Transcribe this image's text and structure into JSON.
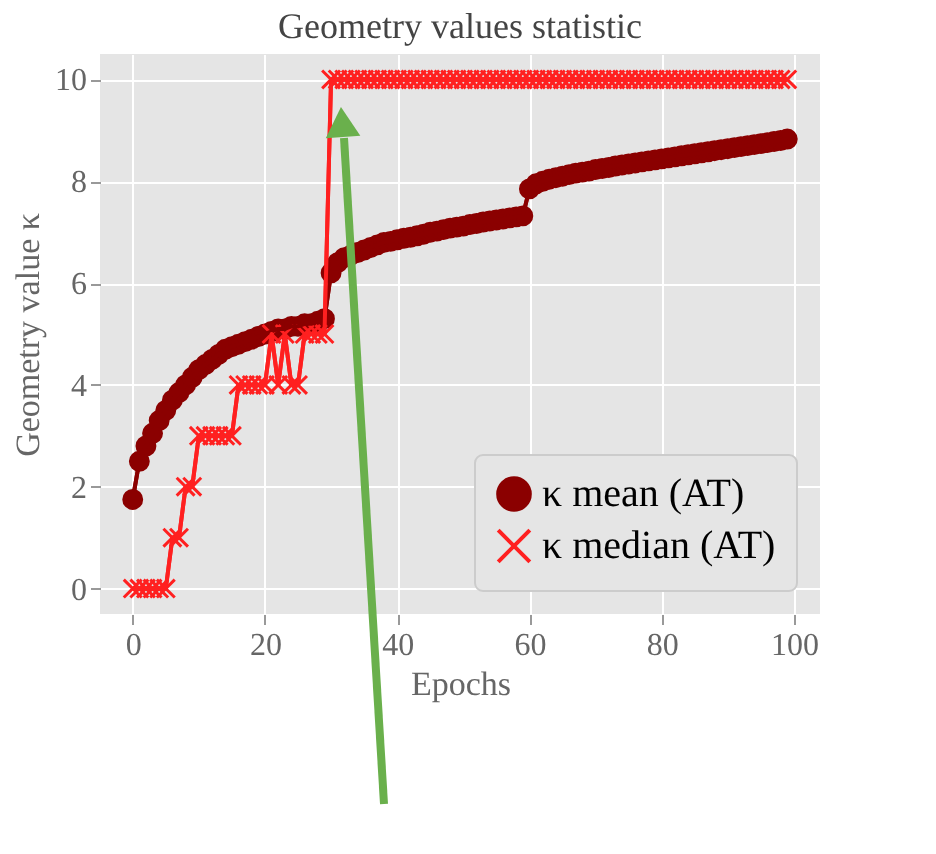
{
  "chart_data": {
    "type": "line",
    "title": "Geometry values statistic",
    "xlabel": "Epochs",
    "ylabel": "Geometry value κ",
    "x": [
      0,
      1,
      2,
      3,
      4,
      5,
      6,
      7,
      8,
      9,
      10,
      11,
      12,
      13,
      14,
      15,
      16,
      17,
      18,
      19,
      20,
      21,
      22,
      23,
      24,
      25,
      26,
      27,
      28,
      29,
      30,
      31,
      32,
      33,
      34,
      35,
      36,
      37,
      38,
      39,
      40,
      41,
      42,
      43,
      44,
      45,
      46,
      47,
      48,
      49,
      50,
      51,
      52,
      53,
      54,
      55,
      56,
      57,
      58,
      59,
      60,
      61,
      62,
      63,
      64,
      65,
      66,
      67,
      68,
      69,
      70,
      71,
      72,
      73,
      74,
      75,
      76,
      77,
      78,
      79,
      80,
      81,
      82,
      83,
      84,
      85,
      86,
      87,
      88,
      89,
      90,
      91,
      92,
      93,
      94,
      95,
      96,
      97,
      98,
      99
    ],
    "series": [
      {
        "name": "κ mean (AT)",
        "color": "#8b0000",
        "marker": "circle",
        "values": [
          1.75,
          2.5,
          2.8,
          3.05,
          3.3,
          3.5,
          3.7,
          3.85,
          4.0,
          4.15,
          4.3,
          4.4,
          4.5,
          4.6,
          4.7,
          4.75,
          4.8,
          4.85,
          4.9,
          4.95,
          5.0,
          5.05,
          5.1,
          5.1,
          5.15,
          5.15,
          5.2,
          5.2,
          5.25,
          5.3,
          6.2,
          6.4,
          6.5,
          6.55,
          6.6,
          6.65,
          6.7,
          6.75,
          6.8,
          6.82,
          6.85,
          6.88,
          6.9,
          6.93,
          6.96,
          7.0,
          7.02,
          7.05,
          7.08,
          7.1,
          7.12,
          7.15,
          7.17,
          7.2,
          7.22,
          7.24,
          7.26,
          7.28,
          7.3,
          7.32,
          7.85,
          7.95,
          8.0,
          8.04,
          8.07,
          8.1,
          8.13,
          8.16,
          8.18,
          8.2,
          8.23,
          8.25,
          8.27,
          8.3,
          8.32,
          8.34,
          8.36,
          8.38,
          8.4,
          8.42,
          8.44,
          8.46,
          8.48,
          8.5,
          8.52,
          8.54,
          8.56,
          8.58,
          8.6,
          8.62,
          8.64,
          8.66,
          8.68,
          8.7,
          8.72,
          8.74,
          8.76,
          8.78,
          8.8,
          8.83
        ]
      },
      {
        "name": "κ median (AT)",
        "color": "#ff2020",
        "marker": "cross",
        "values": [
          0,
          0,
          0,
          0,
          0,
          0,
          1,
          1,
          2,
          2,
          3,
          3,
          3,
          3,
          3,
          3,
          4,
          4,
          4,
          4,
          4,
          5,
          4,
          5,
          4,
          4,
          5,
          5,
          5,
          5,
          10,
          10,
          10,
          10,
          10,
          10,
          10,
          10,
          10,
          10,
          10,
          10,
          10,
          10,
          10,
          10,
          10,
          10,
          10,
          10,
          10,
          10,
          10,
          10,
          10,
          10,
          10,
          10,
          10,
          10,
          10,
          10,
          10,
          10,
          10,
          10,
          10,
          10,
          10,
          10,
          10,
          10,
          10,
          10,
          10,
          10,
          10,
          10,
          10,
          10,
          10,
          10,
          10,
          10,
          10,
          10,
          10,
          10,
          10,
          10,
          10,
          10,
          10,
          10,
          10,
          10,
          10,
          10,
          10,
          10
        ]
      }
    ],
    "xlim": [
      -4.95,
      103.95
    ],
    "ylim": [
      -0.5,
      10.5
    ],
    "xticks": [
      0,
      20,
      40,
      60,
      80,
      100
    ],
    "yticks": [
      0,
      2,
      4,
      6,
      8,
      10
    ],
    "grid": true,
    "legend": "bottom right",
    "line_style": "solid"
  }
}
